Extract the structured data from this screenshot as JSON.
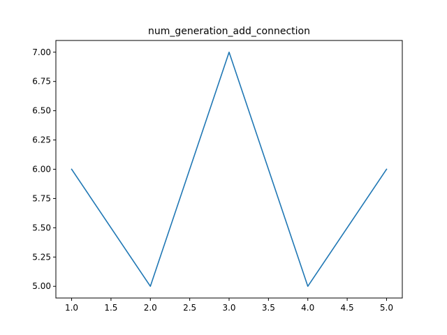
{
  "chart_data": {
    "type": "line",
    "title": "num_generation_add_connection",
    "xlabel": "",
    "ylabel": "",
    "x": [
      1,
      2,
      3,
      4,
      5
    ],
    "series": [
      {
        "values": [
          6,
          5,
          7,
          5,
          6
        ],
        "color": "#1f77b4"
      }
    ],
    "xlim": [
      0.8,
      5.2
    ],
    "ylim": [
      4.9,
      7.1
    ],
    "x_ticks": [
      1.0,
      1.5,
      2.0,
      2.5,
      3.0,
      3.5,
      4.0,
      4.5,
      5.0
    ],
    "x_tick_labels": [
      "1.0",
      "1.5",
      "2.0",
      "2.5",
      "3.0",
      "3.5",
      "4.0",
      "4.5",
      "5.0"
    ],
    "y_ticks": [
      5.0,
      5.25,
      5.5,
      5.75,
      6.0,
      6.25,
      6.5,
      6.75,
      7.0
    ],
    "y_tick_labels": [
      "5.00",
      "5.25",
      "5.50",
      "5.75",
      "6.00",
      "6.25",
      "6.50",
      "6.75",
      "7.00"
    ],
    "grid": false,
    "legend": "none"
  }
}
